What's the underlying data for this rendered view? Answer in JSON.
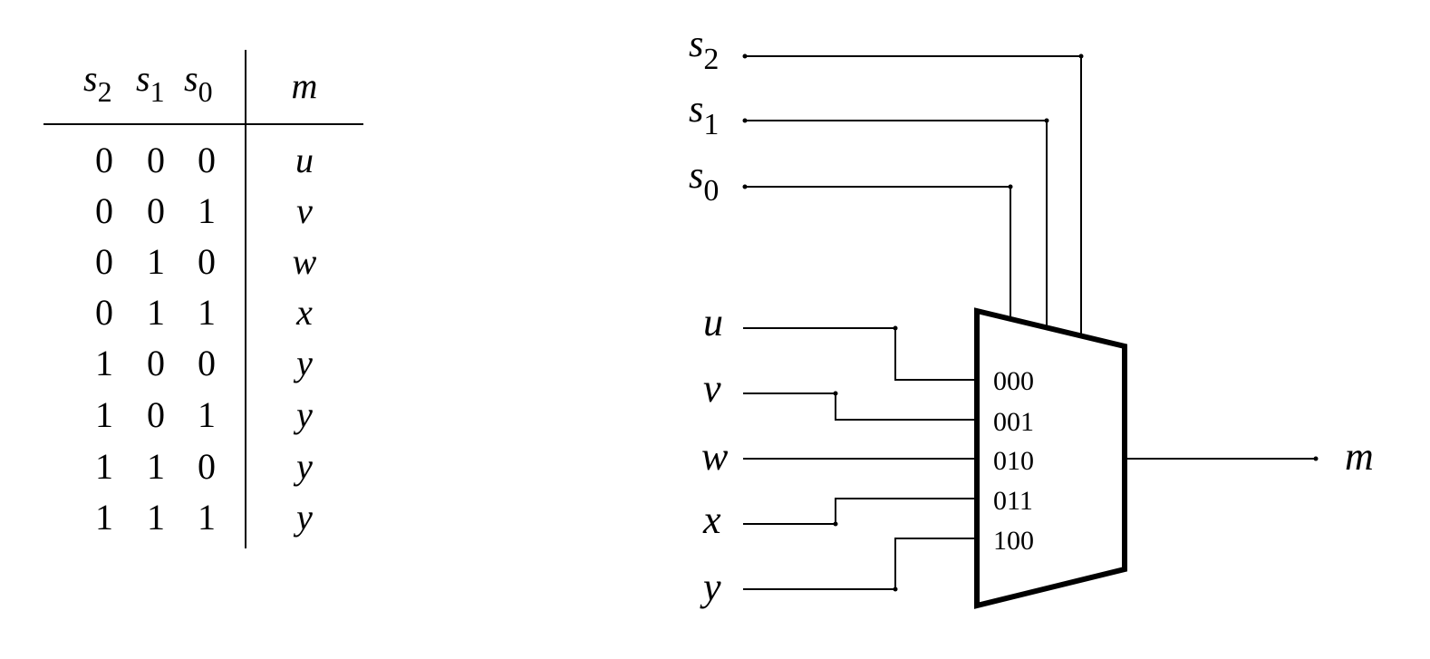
{
  "truth_table": {
    "headers": {
      "s2": {
        "base": "s",
        "sub": "2"
      },
      "s1": {
        "base": "s",
        "sub": "1"
      },
      "s0": {
        "base": "s",
        "sub": "0"
      },
      "m": "m"
    },
    "rows": [
      {
        "s2": "0",
        "s1": "0",
        "s0": "0",
        "m": "u"
      },
      {
        "s2": "0",
        "s1": "0",
        "s0": "1",
        "m": "v"
      },
      {
        "s2": "0",
        "s1": "1",
        "s0": "0",
        "m": "w"
      },
      {
        "s2": "0",
        "s1": "1",
        "s0": "1",
        "m": "x"
      },
      {
        "s2": "1",
        "s1": "0",
        "s0": "0",
        "m": "y"
      },
      {
        "s2": "1",
        "s1": "0",
        "s0": "1",
        "m": "y"
      },
      {
        "s2": "1",
        "s1": "1",
        "s0": "0",
        "m": "y"
      },
      {
        "s2": "1",
        "s1": "1",
        "s0": "1",
        "m": "y"
      }
    ]
  },
  "circuit": {
    "selects": [
      {
        "base": "s",
        "sub": "2"
      },
      {
        "base": "s",
        "sub": "1"
      },
      {
        "base": "s",
        "sub": "0"
      }
    ],
    "inputs": [
      "u",
      "v",
      "w",
      "x",
      "y"
    ],
    "mux_port_labels": [
      "000",
      "001",
      "010",
      "011",
      "100"
    ],
    "output": "m"
  }
}
